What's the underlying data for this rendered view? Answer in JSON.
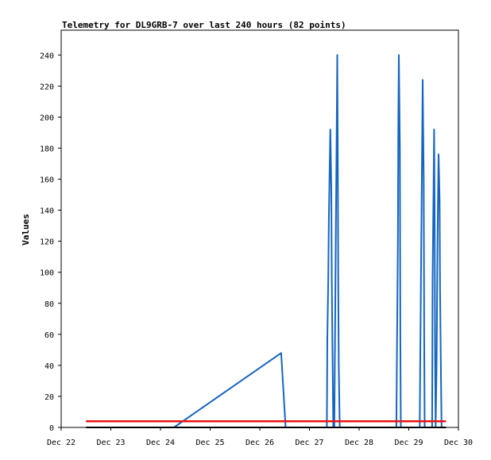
{
  "chart_data": {
    "type": "line",
    "title": "Telemetry for DL9GRB-7 over last 240 hours (82 points)",
    "xlabel": "",
    "ylabel": "Values",
    "x_unit": "days",
    "x_tick_labels": [
      "Dec 22",
      "Dec 23",
      "Dec 24",
      "Dec 25",
      "Dec 26",
      "Dec 27",
      "Dec 28",
      "Dec 29",
      "Dec 30"
    ],
    "x_ticks": [
      22,
      23,
      24,
      25,
      26,
      27,
      28,
      29,
      30
    ],
    "xlim": [
      22,
      30
    ],
    "y_ticks": [
      0,
      20,
      40,
      60,
      80,
      100,
      120,
      140,
      160,
      180,
      200,
      220,
      240
    ],
    "ylim": [
      0,
      256
    ],
    "grid": false,
    "legend": "none",
    "series": [
      {
        "color": "#1565c0",
        "points": [
          [
            24.27,
            0
          ],
          [
            26.43,
            48
          ],
          [
            26.52,
            0
          ],
          [
            27.35,
            0
          ],
          [
            27.36,
            57
          ],
          [
            27.38,
            97
          ],
          [
            27.39,
            134
          ],
          [
            27.41,
            172
          ],
          [
            27.42,
            192
          ],
          [
            27.44,
            153
          ],
          [
            27.45,
            96
          ],
          [
            27.46,
            57
          ],
          [
            27.48,
            0
          ],
          [
            27.5,
            0
          ],
          [
            27.51,
            40
          ],
          [
            27.53,
            120
          ],
          [
            27.55,
            199
          ],
          [
            27.56,
            240
          ],
          [
            27.57,
            180
          ],
          [
            27.58,
            96
          ],
          [
            27.59,
            40
          ],
          [
            27.61,
            0
          ],
          [
            28.75,
            0
          ],
          [
            28.76,
            40
          ],
          [
            28.78,
            120
          ],
          [
            28.79,
            200
          ],
          [
            28.8,
            240
          ],
          [
            28.82,
            180
          ],
          [
            28.83,
            60
          ],
          [
            28.84,
            0
          ],
          [
            29.22,
            0
          ],
          [
            29.23,
            40
          ],
          [
            29.25,
            112
          ],
          [
            29.27,
            186
          ],
          [
            29.28,
            224
          ],
          [
            29.3,
            160
          ],
          [
            29.31,
            60
          ],
          [
            29.32,
            0
          ],
          [
            29.47,
            0
          ],
          [
            29.48,
            96
          ],
          [
            29.5,
            160
          ],
          [
            29.51,
            192
          ],
          [
            29.52,
            144
          ],
          [
            29.53,
            48
          ],
          [
            29.54,
            0
          ],
          [
            29.56,
            40
          ],
          [
            29.58,
            120
          ],
          [
            29.6,
            176
          ],
          [
            29.62,
            147
          ],
          [
            29.63,
            88
          ],
          [
            29.65,
            30
          ],
          [
            29.66,
            0
          ]
        ]
      },
      {
        "color": "#ee1111",
        "points": [
          [
            22.5,
            4
          ],
          [
            29.75,
            4
          ]
        ]
      },
      {
        "color": "#000000",
        "points": [
          [
            22.5,
            0
          ],
          [
            29.75,
            0
          ]
        ]
      }
    ]
  }
}
